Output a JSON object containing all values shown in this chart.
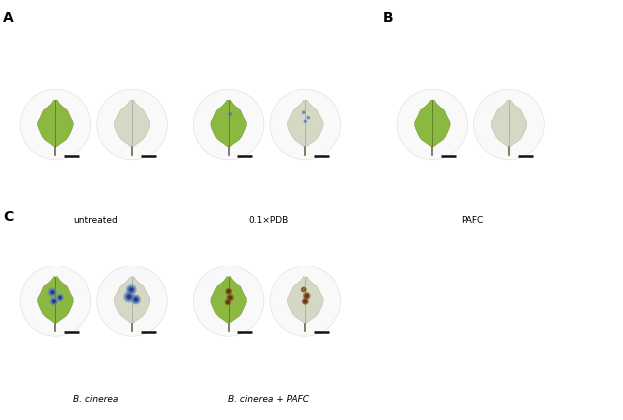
{
  "fig_width": 6.23,
  "fig_height": 4.2,
  "dpi": 100,
  "background_color": "#ffffff",
  "label_A": "A",
  "label_B": "B",
  "label_C": "C",
  "label_fontsize": 10,
  "label_fontweight": "bold",
  "caption_untreated": "untreated",
  "caption_pdb": "0.1×PDB",
  "caption_pafc": "PAFC",
  "caption_bcinerea": "B. cinerea",
  "caption_bcinerea_pafc": "B. cinerea + PAFC",
  "caption_fontsize": 6.5,
  "leaf_green": "#8ab840",
  "leaf_pale_green": "#c8d4a0",
  "leaf_very_pale": "#d8dcc8",
  "plate_bg": "#f8f8f8",
  "plate_edge": "#e0e0e0",
  "stem_color": "#666655",
  "midrib_color_green": "#6a9030",
  "midrib_color_pale": "#aaaaaa",
  "spot_blue_outer": "#5577aa",
  "spot_blue_inner": "#334488",
  "spot_brown": "#7a4010",
  "scale_bar_color": "#111111"
}
